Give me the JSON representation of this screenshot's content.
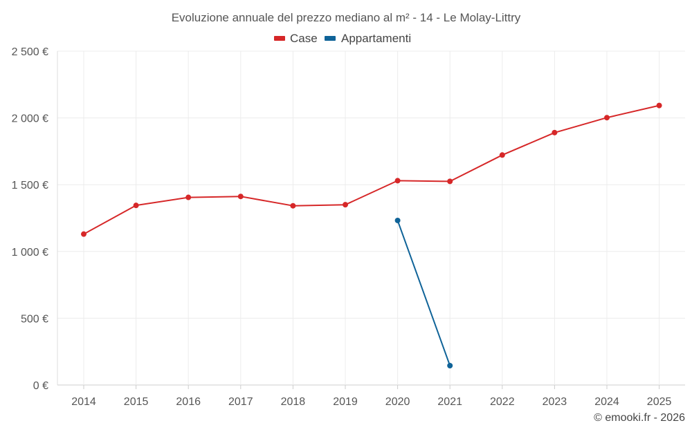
{
  "chart_data": {
    "type": "line",
    "title": "Evoluzione annuale del prezzo mediano al m² - 14 - Le Molay-Littry",
    "categories": [
      "2014",
      "2015",
      "2016",
      "2017",
      "2018",
      "2019",
      "2020",
      "2021",
      "2022",
      "2023",
      "2024",
      "2025"
    ],
    "y_ticks": [
      "0 €",
      "500 €",
      "1 000 €",
      "1 500 €",
      "2 000 €",
      "2 500 €"
    ],
    "y_tick_values": [
      0,
      500,
      1000,
      1500,
      2000,
      2500
    ],
    "ylim": [
      0,
      2500
    ],
    "grid": true,
    "legend_position": "top-center",
    "series": [
      {
        "name": "Case",
        "color": "#d62728",
        "values": [
          1130,
          1345,
          1405,
          1412,
          1342,
          1350,
          1530,
          1525,
          1722,
          1890,
          2002,
          2093
        ]
      },
      {
        "name": "Appartamenti",
        "color": "#0f6398",
        "values": [
          null,
          null,
          null,
          null,
          null,
          null,
          1232,
          145,
          null,
          null,
          null,
          null
        ]
      }
    ],
    "credit": "© emooki.fr - 2026"
  }
}
